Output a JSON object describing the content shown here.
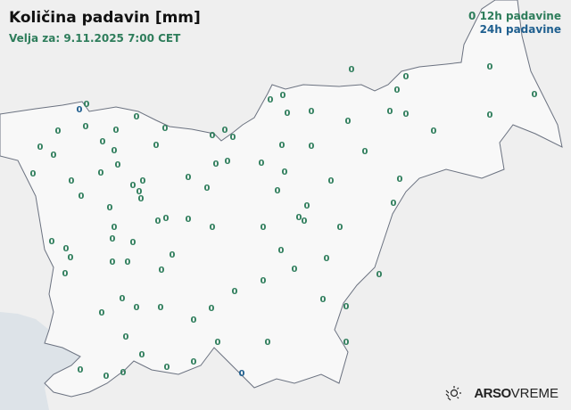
{
  "header": {
    "title": "Količina padavin [mm]",
    "valid": "Velja za: 9.11.2025 7:00 CET"
  },
  "legend": {
    "item12_marker": "0",
    "item12": "12h padavine",
    "item24": "24h padavine"
  },
  "colors": {
    "h12": "#2e7d5b",
    "h24": "#1f5f8f",
    "sea": "#dde3e8",
    "land": "#f7f7f7",
    "border": "#6b7280"
  },
  "logo": {
    "icon": "sun-rain-icon",
    "bold": "ARSO",
    "light": "VREME"
  },
  "stations": [
    {
      "v": "0",
      "t": "12h"
    },
    {
      "v": "0",
      "t": "12h"
    },
    {
      "v": "0",
      "t": "12h"
    },
    {
      "v": "0",
      "t": "12h"
    },
    {
      "v": "0",
      "t": "12h"
    },
    {
      "v": "0",
      "t": "12h"
    },
    {
      "v": "0",
      "t": "12h"
    },
    {
      "v": "0",
      "t": "12h"
    },
    {
      "v": "0",
      "t": "24h"
    },
    {
      "v": "0",
      "t": "12h"
    },
    {
      "v": "0",
      "t": "12h"
    },
    {
      "v": "0",
      "t": "12h"
    },
    {
      "v": "0",
      "t": "12h"
    },
    {
      "v": "0",
      "t": "12h"
    },
    {
      "v": "0",
      "t": "12h"
    },
    {
      "v": "0",
      "t": "12h"
    },
    {
      "v": "0",
      "t": "12h"
    },
    {
      "v": "0",
      "t": "12h"
    },
    {
      "v": "0",
      "t": "12h"
    },
    {
      "v": "0",
      "t": "12h"
    },
    {
      "v": "0",
      "t": "12h"
    },
    {
      "v": "0",
      "t": "12h"
    },
    {
      "v": "0",
      "t": "12h"
    },
    {
      "v": "0",
      "t": "12h"
    },
    {
      "v": "0",
      "t": "12h"
    },
    {
      "v": "0",
      "t": "12h"
    },
    {
      "v": "0",
      "t": "12h"
    },
    {
      "v": "0",
      "t": "12h"
    },
    {
      "v": "0",
      "t": "12h"
    },
    {
      "v": "0",
      "t": "12h"
    },
    {
      "v": "0",
      "t": "12h"
    },
    {
      "v": "0",
      "t": "12h"
    },
    {
      "v": "0",
      "t": "12h"
    },
    {
      "v": "0",
      "t": "12h"
    },
    {
      "v": "0",
      "t": "12h"
    },
    {
      "v": "0",
      "t": "12h"
    },
    {
      "v": "0",
      "t": "12h"
    },
    {
      "v": "0",
      "t": "12h"
    },
    {
      "v": "0",
      "t": "12h"
    },
    {
      "v": "0",
      "t": "12h"
    },
    {
      "v": "0",
      "t": "12h"
    },
    {
      "v": "0",
      "t": "12h"
    },
    {
      "v": "0",
      "t": "12h"
    },
    {
      "v": "0",
      "t": "12h"
    },
    {
      "v": "0",
      "t": "12h"
    },
    {
      "v": "0",
      "t": "12h"
    },
    {
      "v": "0",
      "t": "12h"
    },
    {
      "v": "0",
      "t": "12h"
    },
    {
      "v": "0",
      "t": "12h"
    },
    {
      "v": "0",
      "t": "12h"
    },
    {
      "v": "0",
      "t": "12h"
    },
    {
      "v": "0",
      "t": "12h"
    },
    {
      "v": "0",
      "t": "12h"
    },
    {
      "v": "0",
      "t": "12h"
    },
    {
      "v": "0",
      "t": "12h"
    },
    {
      "v": "0",
      "t": "12h"
    },
    {
      "v": "0",
      "t": "12h"
    },
    {
      "v": "0",
      "t": "12h"
    },
    {
      "v": "0",
      "t": "12h"
    },
    {
      "v": "0",
      "t": "12h"
    },
    {
      "v": "0",
      "t": "12h"
    },
    {
      "v": "0",
      "t": "12h"
    },
    {
      "v": "0",
      "t": "12h"
    },
    {
      "v": "0",
      "t": "12h"
    },
    {
      "v": "0",
      "t": "12h"
    },
    {
      "v": "0",
      "t": "12h"
    },
    {
      "v": "0",
      "t": "12h"
    },
    {
      "v": "0",
      "t": "12h"
    },
    {
      "v": "0",
      "t": "12h"
    },
    {
      "v": "0",
      "t": "12h"
    },
    {
      "v": "0",
      "t": "12h"
    },
    {
      "v": "0",
      "t": "12h"
    },
    {
      "v": "0",
      "t": "12h"
    },
    {
      "v": "0",
      "t": "12h"
    },
    {
      "v": "0",
      "t": "12h"
    },
    {
      "v": "0",
      "t": "12h"
    },
    {
      "v": "0",
      "t": "12h"
    },
    {
      "v": "0",
      "t": "12h"
    },
    {
      "v": "0",
      "t": "12h"
    },
    {
      "v": "0",
      "t": "12h"
    },
    {
      "v": "0",
      "t": "12h"
    },
    {
      "v": "0",
      "t": "12h"
    },
    {
      "v": "0",
      "t": "12h"
    },
    {
      "v": "0",
      "t": "12h"
    },
    {
      "v": "0",
      "t": "12h"
    },
    {
      "v": "0",
      "t": "12h"
    },
    {
      "v": "0",
      "t": "12h"
    },
    {
      "v": "0",
      "t": "12h"
    },
    {
      "v": "0",
      "t": "12h"
    },
    {
      "v": "0",
      "t": "12h"
    },
    {
      "v": "0",
      "t": "12h"
    },
    {
      "v": "0",
      "t": "12h"
    },
    {
      "v": "0",
      "t": "12h"
    },
    {
      "v": "0",
      "t": "12h"
    },
    {
      "v": "0",
      "t": "12h"
    },
    {
      "v": "0",
      "t": "12h"
    },
    {
      "v": "0",
      "t": "24h"
    }
  ]
}
